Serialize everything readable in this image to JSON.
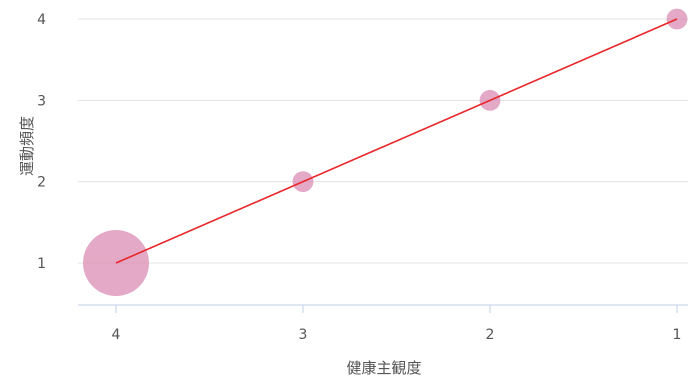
{
  "chart_data": {
    "type": "scatter",
    "title": "",
    "xlabel": "健康主観度",
    "ylabel": "運動頻度",
    "x_reversed": true,
    "xlim": [
      4.2,
      0.99
    ],
    "ylim": [
      0.5,
      4.0
    ],
    "x_ticks": [
      4,
      3,
      2,
      1
    ],
    "y_ticks": [
      1,
      2,
      3,
      4
    ],
    "grid": {
      "horizontal": true,
      "vertical": false
    },
    "legend": "none",
    "point_color": "#d98cb3",
    "trend_color": "#e8262b",
    "points": [
      {
        "x": 4,
        "y": 1,
        "relative_size": 1.0
      },
      {
        "x": 3,
        "y": 2,
        "relative_size": 0.1
      },
      {
        "x": 2,
        "y": 3,
        "relative_size": 0.1
      },
      {
        "x": 1,
        "y": 4,
        "relative_size": 0.1
      }
    ],
    "trend_line": {
      "from": {
        "x": 4,
        "y": 1
      },
      "to": {
        "x": 1,
        "y": 4
      }
    }
  }
}
